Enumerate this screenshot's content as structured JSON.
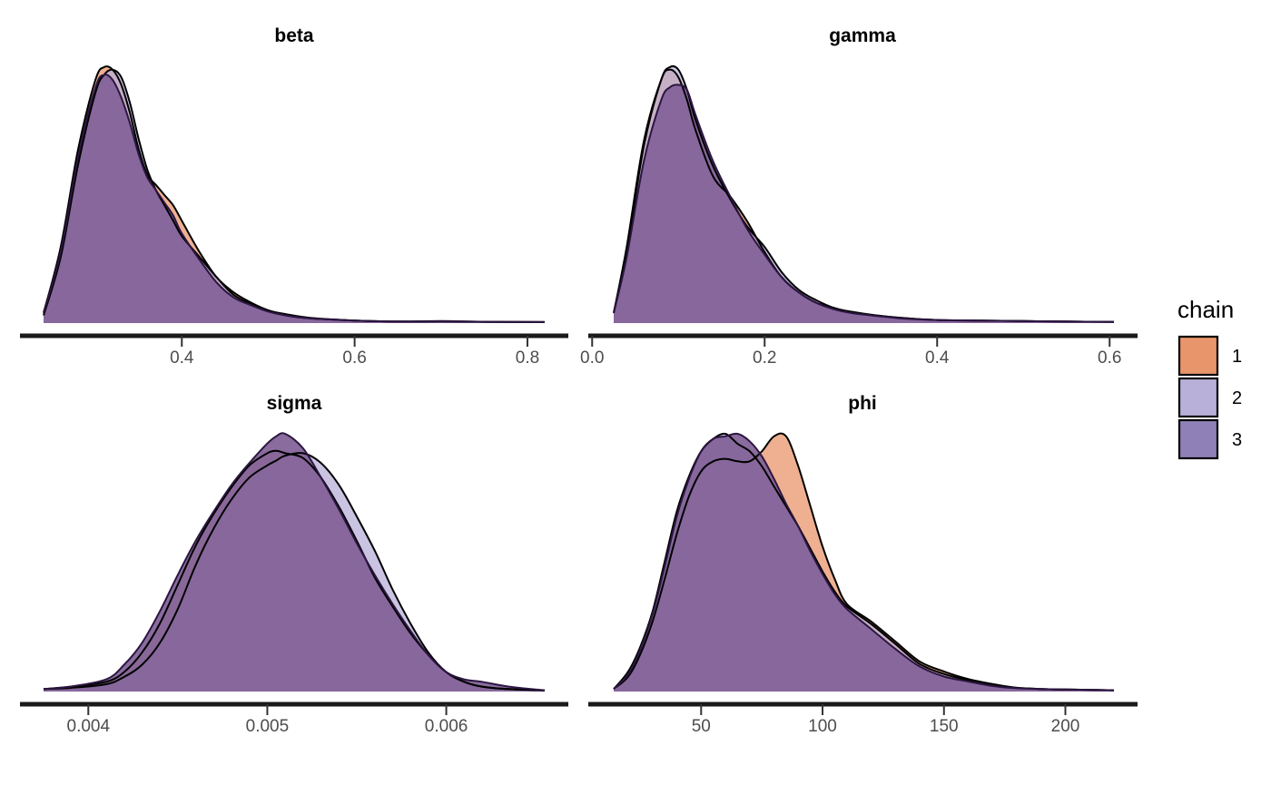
{
  "legend": {
    "title": "chain",
    "entries": [
      {
        "label": "1",
        "color": "#E8956B"
      },
      {
        "label": "2",
        "color": "#B8B0D8"
      },
      {
        "label": "3",
        "color": "#9080B8"
      }
    ]
  },
  "overlap_color": "#7B5287",
  "chart_data": [
    {
      "type": "area",
      "title": "beta",
      "xlim": [
        0.24,
        0.82
      ],
      "ticks": [
        0.4,
        0.6,
        0.8
      ],
      "tick_labels": [
        "0.4",
        "0.6",
        "0.8"
      ],
      "series": [
        {
          "name": "1",
          "x": [
            0.24,
            0.26,
            0.28,
            0.3,
            0.31,
            0.32,
            0.33,
            0.34,
            0.35,
            0.36,
            0.37,
            0.38,
            0.39,
            0.4,
            0.42,
            0.44,
            0.46,
            0.48,
            0.5,
            0.52,
            0.55,
            0.6,
            0.65,
            0.7,
            0.75,
            0.82
          ],
          "y": [
            0.04,
            0.3,
            0.68,
            0.95,
            1.0,
            0.99,
            0.93,
            0.82,
            0.68,
            0.58,
            0.54,
            0.5,
            0.46,
            0.4,
            0.28,
            0.18,
            0.12,
            0.08,
            0.05,
            0.035,
            0.02,
            0.01,
            0.006,
            0.006,
            0.005,
            0.004
          ]
        },
        {
          "name": "2",
          "x": [
            0.24,
            0.26,
            0.28,
            0.3,
            0.31,
            0.32,
            0.33,
            0.34,
            0.35,
            0.36,
            0.37,
            0.38,
            0.39,
            0.4,
            0.42,
            0.44,
            0.46,
            0.48,
            0.5,
            0.52,
            0.55,
            0.6,
            0.65,
            0.7,
            0.75,
            0.82
          ],
          "y": [
            0.03,
            0.26,
            0.62,
            0.9,
            0.97,
            0.99,
            0.96,
            0.86,
            0.72,
            0.6,
            0.52,
            0.46,
            0.4,
            0.34,
            0.26,
            0.18,
            0.11,
            0.075,
            0.05,
            0.03,
            0.018,
            0.01,
            0.006,
            0.008,
            0.005,
            0.004
          ]
        },
        {
          "name": "3",
          "x": [
            0.24,
            0.26,
            0.28,
            0.3,
            0.31,
            0.32,
            0.33,
            0.34,
            0.35,
            0.36,
            0.37,
            0.38,
            0.39,
            0.4,
            0.42,
            0.44,
            0.46,
            0.48,
            0.5,
            0.52,
            0.55,
            0.6,
            0.65,
            0.7,
            0.75,
            0.82
          ],
          "y": [
            0.04,
            0.28,
            0.65,
            0.92,
            0.97,
            0.95,
            0.88,
            0.78,
            0.66,
            0.57,
            0.52,
            0.47,
            0.42,
            0.35,
            0.25,
            0.16,
            0.1,
            0.07,
            0.045,
            0.03,
            0.018,
            0.01,
            0.006,
            0.007,
            0.005,
            0.004
          ]
        }
      ]
    },
    {
      "type": "area",
      "title": "gamma",
      "xlim": [
        0.025,
        0.605
      ],
      "ticks": [
        0.0,
        0.2,
        0.4,
        0.6
      ],
      "tick_labels": [
        "0.0",
        "0.2",
        "0.4",
        "0.6"
      ],
      "series": [
        {
          "name": "1",
          "x": [
            0.025,
            0.04,
            0.06,
            0.08,
            0.09,
            0.1,
            0.11,
            0.12,
            0.14,
            0.16,
            0.18,
            0.2,
            0.22,
            0.24,
            0.26,
            0.28,
            0.3,
            0.33,
            0.36,
            0.4,
            0.45,
            0.5,
            0.55,
            0.605
          ],
          "y": [
            0.04,
            0.3,
            0.72,
            0.96,
            1.0,
            0.97,
            0.88,
            0.76,
            0.58,
            0.5,
            0.4,
            0.28,
            0.18,
            0.12,
            0.08,
            0.06,
            0.04,
            0.03,
            0.02,
            0.012,
            0.01,
            0.008,
            0.006,
            0.005
          ]
        },
        {
          "name": "2",
          "x": [
            0.025,
            0.04,
            0.06,
            0.08,
            0.09,
            0.1,
            0.11,
            0.12,
            0.14,
            0.16,
            0.18,
            0.2,
            0.22,
            0.24,
            0.26,
            0.28,
            0.3,
            0.33,
            0.36,
            0.4,
            0.45,
            0.5,
            0.55,
            0.605
          ],
          "y": [
            0.04,
            0.28,
            0.7,
            0.96,
            1.01,
            1.0,
            0.92,
            0.8,
            0.62,
            0.49,
            0.38,
            0.3,
            0.2,
            0.13,
            0.09,
            0.06,
            0.045,
            0.03,
            0.02,
            0.012,
            0.01,
            0.008,
            0.006,
            0.005
          ]
        },
        {
          "name": "3",
          "x": [
            0.025,
            0.04,
            0.06,
            0.08,
            0.09,
            0.1,
            0.11,
            0.12,
            0.14,
            0.16,
            0.18,
            0.2,
            0.22,
            0.24,
            0.26,
            0.28,
            0.3,
            0.33,
            0.36,
            0.4,
            0.45,
            0.5,
            0.55,
            0.605
          ],
          "y": [
            0.04,
            0.26,
            0.64,
            0.88,
            0.93,
            0.94,
            0.92,
            0.82,
            0.64,
            0.5,
            0.37,
            0.27,
            0.18,
            0.12,
            0.08,
            0.055,
            0.04,
            0.028,
            0.018,
            0.012,
            0.01,
            0.008,
            0.006,
            0.005
          ]
        }
      ]
    },
    {
      "type": "area",
      "title": "sigma",
      "xlim": [
        0.00375,
        0.00655
      ],
      "ticks": [
        0.004,
        0.005,
        0.006
      ],
      "tick_labels": [
        "0.004",
        "0.005",
        "0.006"
      ],
      "series": [
        {
          "name": "1",
          "x": [
            0.00375,
            0.0039,
            0.0041,
            0.0042,
            0.0043,
            0.0044,
            0.0045,
            0.0046,
            0.0047,
            0.0048,
            0.0049,
            0.005,
            0.00505,
            0.0051,
            0.0052,
            0.0053,
            0.0054,
            0.0055,
            0.0056,
            0.0057,
            0.0058,
            0.0059,
            0.006,
            0.0061,
            0.0062,
            0.00635,
            0.00655
          ],
          "y": [
            0.01,
            0.02,
            0.04,
            0.08,
            0.16,
            0.28,
            0.44,
            0.6,
            0.73,
            0.84,
            0.93,
            0.98,
            0.99,
            0.98,
            0.96,
            0.88,
            0.76,
            0.62,
            0.47,
            0.35,
            0.24,
            0.15,
            0.08,
            0.04,
            0.02,
            0.01,
            0.005
          ]
        },
        {
          "name": "2",
          "x": [
            0.00375,
            0.0039,
            0.0041,
            0.0042,
            0.0043,
            0.0044,
            0.0045,
            0.0046,
            0.0047,
            0.0048,
            0.0049,
            0.005,
            0.00505,
            0.0051,
            0.0052,
            0.0053,
            0.0054,
            0.0055,
            0.0056,
            0.0057,
            0.0058,
            0.0059,
            0.006,
            0.0061,
            0.0062,
            0.00635,
            0.00655
          ],
          "y": [
            0.01,
            0.015,
            0.03,
            0.06,
            0.11,
            0.2,
            0.34,
            0.52,
            0.67,
            0.79,
            0.88,
            0.93,
            0.95,
            0.97,
            0.98,
            0.94,
            0.85,
            0.72,
            0.58,
            0.42,
            0.28,
            0.16,
            0.08,
            0.04,
            0.02,
            0.01,
            0.005
          ]
        },
        {
          "name": "3",
          "x": [
            0.00375,
            0.0039,
            0.0041,
            0.0042,
            0.0043,
            0.0044,
            0.0045,
            0.0046,
            0.0047,
            0.0048,
            0.0049,
            0.005,
            0.00505,
            0.0051,
            0.0052,
            0.0053,
            0.0054,
            0.0055,
            0.0056,
            0.0057,
            0.0058,
            0.0059,
            0.006,
            0.0061,
            0.0062,
            0.00635,
            0.00655
          ],
          "y": [
            0.01,
            0.02,
            0.05,
            0.11,
            0.2,
            0.33,
            0.48,
            0.62,
            0.74,
            0.85,
            0.94,
            1.02,
            1.05,
            1.06,
            1.0,
            0.88,
            0.75,
            0.61,
            0.48,
            0.36,
            0.25,
            0.15,
            0.08,
            0.05,
            0.04,
            0.02,
            0.005
          ]
        }
      ]
    },
    {
      "type": "area",
      "title": "phi",
      "xlim": [
        14,
        220
      ],
      "ticks": [
        50,
        100,
        150,
        200
      ],
      "tick_labels": [
        "50",
        "100",
        "150",
        "200"
      ],
      "series": [
        {
          "name": "1",
          "x": [
            14,
            20,
            25,
            30,
            35,
            40,
            45,
            50,
            55,
            60,
            65,
            70,
            75,
            80,
            85,
            90,
            95,
            100,
            105,
            110,
            120,
            130,
            140,
            150,
            160,
            170,
            180,
            190,
            200,
            220
          ],
          "y": [
            0.01,
            0.06,
            0.15,
            0.28,
            0.45,
            0.63,
            0.78,
            0.88,
            0.92,
            0.93,
            0.92,
            0.92,
            0.96,
            1.02,
            1.02,
            0.9,
            0.74,
            0.58,
            0.45,
            0.35,
            0.28,
            0.2,
            0.12,
            0.08,
            0.05,
            0.03,
            0.015,
            0.01,
            0.008,
            0.005
          ]
        },
        {
          "name": "2",
          "x": [
            14,
            20,
            25,
            30,
            35,
            40,
            45,
            50,
            55,
            60,
            65,
            70,
            75,
            80,
            85,
            90,
            95,
            100,
            105,
            110,
            120,
            130,
            140,
            150,
            160,
            170,
            180,
            190,
            200,
            220
          ],
          "y": [
            0.01,
            0.08,
            0.18,
            0.32,
            0.52,
            0.72,
            0.86,
            0.96,
            1.01,
            1.03,
            0.99,
            0.96,
            0.9,
            0.82,
            0.74,
            0.66,
            0.57,
            0.48,
            0.4,
            0.34,
            0.27,
            0.19,
            0.11,
            0.07,
            0.045,
            0.025,
            0.015,
            0.01,
            0.008,
            0.005
          ]
        },
        {
          "name": "3",
          "x": [
            14,
            20,
            25,
            30,
            35,
            40,
            45,
            50,
            55,
            60,
            65,
            70,
            75,
            80,
            85,
            90,
            95,
            100,
            105,
            110,
            120,
            130,
            140,
            150,
            160,
            170,
            180,
            190,
            200,
            220
          ],
          "y": [
            0.01,
            0.07,
            0.17,
            0.31,
            0.5,
            0.7,
            0.85,
            0.96,
            1.01,
            1.02,
            1.03,
            1.0,
            0.94,
            0.85,
            0.75,
            0.66,
            0.56,
            0.47,
            0.39,
            0.33,
            0.25,
            0.17,
            0.1,
            0.06,
            0.04,
            0.022,
            0.013,
            0.01,
            0.008,
            0.005
          ]
        }
      ]
    }
  ]
}
